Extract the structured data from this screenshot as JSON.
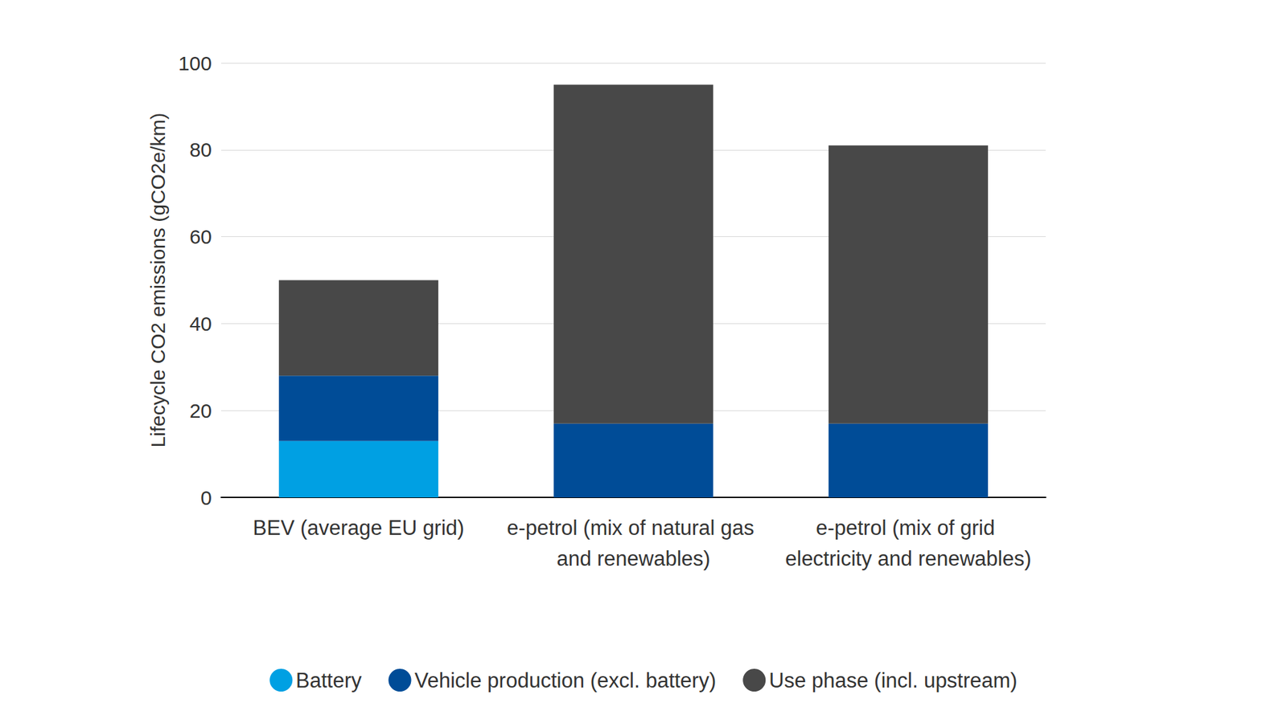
{
  "chart_data": {
    "type": "bar",
    "stacked": true,
    "y_label": "Lifecycle CO2 emissions (gCO2e/km)",
    "categories": [
      "BEV (average EU grid)",
      "e-petrol (mix of natural gas and renewables)",
      "e-petrol (mix of grid electricity and renewables)"
    ],
    "series": [
      {
        "name": "Battery",
        "color": "#00a0e3",
        "values": [
          13,
          null,
          null
        ]
      },
      {
        "name": "Vehicle production (excl. battery)",
        "color": "#004c97",
        "values": [
          15,
          17,
          17
        ]
      },
      {
        "name": "Use phase (incl. upstream)",
        "color": "#484848",
        "values": [
          22,
          78,
          64
        ]
      }
    ],
    "ylim": [
      0,
      100
    ],
    "yticks": [
      0,
      20,
      40,
      60,
      80,
      100
    ],
    "grid": true,
    "legend": "bottom",
    "data_labels": false
  }
}
